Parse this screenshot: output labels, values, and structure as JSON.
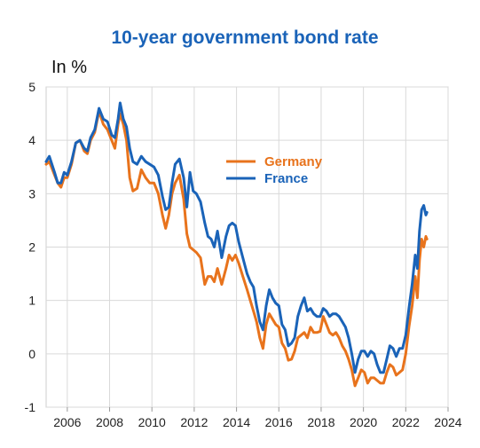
{
  "chart_data": {
    "type": "line",
    "title": "10-year government bond rate",
    "unit_label": "In %",
    "xlim": [
      2005,
      2024
    ],
    "ylim": [
      -1,
      5
    ],
    "x_ticks": [
      "2006",
      "2008",
      "2010",
      "2012",
      "2014",
      "2016",
      "2018",
      "2020",
      "2022",
      "2024"
    ],
    "y_ticks": [
      "5",
      "4",
      "3",
      "2",
      "1",
      "0",
      "-1"
    ],
    "grid": true,
    "legend_position": "center-right",
    "series": [
      {
        "name": "Germany",
        "color": "#e8731c",
        "points": [
          [
            2005.0,
            3.55
          ],
          [
            2005.15,
            3.6
          ],
          [
            2005.4,
            3.35
          ],
          [
            2005.55,
            3.2
          ],
          [
            2005.7,
            3.12
          ],
          [
            2005.85,
            3.3
          ],
          [
            2006.0,
            3.3
          ],
          [
            2006.2,
            3.55
          ],
          [
            2006.4,
            3.95
          ],
          [
            2006.6,
            4.0
          ],
          [
            2006.8,
            3.8
          ],
          [
            2006.95,
            3.75
          ],
          [
            2007.1,
            4.0
          ],
          [
            2007.3,
            4.15
          ],
          [
            2007.5,
            4.55
          ],
          [
            2007.7,
            4.3
          ],
          [
            2007.9,
            4.2
          ],
          [
            2008.1,
            4.0
          ],
          [
            2008.25,
            3.85
          ],
          [
            2008.4,
            4.3
          ],
          [
            2008.5,
            4.5
          ],
          [
            2008.65,
            4.3
          ],
          [
            2008.8,
            4.0
          ],
          [
            2008.95,
            3.3
          ],
          [
            2009.1,
            3.05
          ],
          [
            2009.3,
            3.1
          ],
          [
            2009.5,
            3.45
          ],
          [
            2009.7,
            3.3
          ],
          [
            2009.9,
            3.2
          ],
          [
            2010.1,
            3.2
          ],
          [
            2010.3,
            3.0
          ],
          [
            2010.5,
            2.6
          ],
          [
            2010.65,
            2.35
          ],
          [
            2010.8,
            2.6
          ],
          [
            2010.95,
            3.0
          ],
          [
            2011.1,
            3.2
          ],
          [
            2011.3,
            3.35
          ],
          [
            2011.5,
            2.9
          ],
          [
            2011.65,
            2.25
          ],
          [
            2011.8,
            2.0
          ],
          [
            2011.95,
            1.95
          ],
          [
            2012.1,
            1.9
          ],
          [
            2012.3,
            1.8
          ],
          [
            2012.5,
            1.3
          ],
          [
            2012.65,
            1.45
          ],
          [
            2012.8,
            1.45
          ],
          [
            2012.95,
            1.35
          ],
          [
            2013.1,
            1.6
          ],
          [
            2013.3,
            1.3
          ],
          [
            2013.5,
            1.6
          ],
          [
            2013.65,
            1.85
          ],
          [
            2013.8,
            1.75
          ],
          [
            2013.95,
            1.85
          ],
          [
            2014.1,
            1.7
          ],
          [
            2014.3,
            1.45
          ],
          [
            2014.5,
            1.2
          ],
          [
            2014.65,
            1.0
          ],
          [
            2014.8,
            0.8
          ],
          [
            2014.95,
            0.6
          ],
          [
            2015.1,
            0.3
          ],
          [
            2015.25,
            0.1
          ],
          [
            2015.4,
            0.55
          ],
          [
            2015.55,
            0.75
          ],
          [
            2015.7,
            0.65
          ],
          [
            2015.85,
            0.55
          ],
          [
            2016.0,
            0.5
          ],
          [
            2016.15,
            0.2
          ],
          [
            2016.3,
            0.1
          ],
          [
            2016.45,
            -0.12
          ],
          [
            2016.6,
            -0.1
          ],
          [
            2016.75,
            0.05
          ],
          [
            2016.9,
            0.3
          ],
          [
            2017.05,
            0.35
          ],
          [
            2017.2,
            0.4
          ],
          [
            2017.35,
            0.3
          ],
          [
            2017.5,
            0.5
          ],
          [
            2017.65,
            0.4
          ],
          [
            2017.8,
            0.4
          ],
          [
            2017.95,
            0.42
          ],
          [
            2018.1,
            0.7
          ],
          [
            2018.25,
            0.55
          ],
          [
            2018.4,
            0.4
          ],
          [
            2018.55,
            0.35
          ],
          [
            2018.7,
            0.4
          ],
          [
            2018.85,
            0.3
          ],
          [
            2019.0,
            0.15
          ],
          [
            2019.15,
            0.05
          ],
          [
            2019.3,
            -0.1
          ],
          [
            2019.45,
            -0.3
          ],
          [
            2019.6,
            -0.6
          ],
          [
            2019.75,
            -0.45
          ],
          [
            2019.9,
            -0.3
          ],
          [
            2020.05,
            -0.35
          ],
          [
            2020.2,
            -0.55
          ],
          [
            2020.35,
            -0.45
          ],
          [
            2020.5,
            -0.45
          ],
          [
            2020.65,
            -0.5
          ],
          [
            2020.8,
            -0.55
          ],
          [
            2020.95,
            -0.55
          ],
          [
            2021.1,
            -0.35
          ],
          [
            2021.25,
            -0.2
          ],
          [
            2021.4,
            -0.25
          ],
          [
            2021.55,
            -0.4
          ],
          [
            2021.7,
            -0.35
          ],
          [
            2021.85,
            -0.3
          ],
          [
            2022.0,
            0.0
          ],
          [
            2022.15,
            0.5
          ],
          [
            2022.3,
            0.9
          ],
          [
            2022.45,
            1.45
          ],
          [
            2022.55,
            1.05
          ],
          [
            2022.65,
            1.75
          ],
          [
            2022.75,
            2.15
          ],
          [
            2022.85,
            2.0
          ],
          [
            2022.95,
            2.2
          ],
          [
            2023.0,
            2.15
          ]
        ]
      },
      {
        "name": "France",
        "color": "#1a63b8",
        "points": [
          [
            2005.0,
            3.6
          ],
          [
            2005.15,
            3.7
          ],
          [
            2005.4,
            3.4
          ],
          [
            2005.55,
            3.2
          ],
          [
            2005.7,
            3.2
          ],
          [
            2005.85,
            3.4
          ],
          [
            2006.0,
            3.35
          ],
          [
            2006.2,
            3.6
          ],
          [
            2006.4,
            3.95
          ],
          [
            2006.6,
            4.0
          ],
          [
            2006.8,
            3.85
          ],
          [
            2006.95,
            3.8
          ],
          [
            2007.1,
            4.05
          ],
          [
            2007.3,
            4.2
          ],
          [
            2007.5,
            4.6
          ],
          [
            2007.7,
            4.4
          ],
          [
            2007.9,
            4.35
          ],
          [
            2008.1,
            4.1
          ],
          [
            2008.25,
            4.05
          ],
          [
            2008.4,
            4.4
          ],
          [
            2008.5,
            4.7
          ],
          [
            2008.65,
            4.4
          ],
          [
            2008.8,
            4.25
          ],
          [
            2008.95,
            3.85
          ],
          [
            2009.1,
            3.6
          ],
          [
            2009.3,
            3.55
          ],
          [
            2009.5,
            3.7
          ],
          [
            2009.7,
            3.6
          ],
          [
            2009.9,
            3.55
          ],
          [
            2010.1,
            3.5
          ],
          [
            2010.3,
            3.35
          ],
          [
            2010.5,
            2.95
          ],
          [
            2010.65,
            2.7
          ],
          [
            2010.8,
            2.75
          ],
          [
            2010.95,
            3.2
          ],
          [
            2011.1,
            3.55
          ],
          [
            2011.3,
            3.65
          ],
          [
            2011.5,
            3.3
          ],
          [
            2011.65,
            2.75
          ],
          [
            2011.8,
            3.4
          ],
          [
            2011.95,
            3.05
          ],
          [
            2012.1,
            3.0
          ],
          [
            2012.3,
            2.85
          ],
          [
            2012.5,
            2.45
          ],
          [
            2012.65,
            2.2
          ],
          [
            2012.8,
            2.15
          ],
          [
            2012.95,
            2.0
          ],
          [
            2013.1,
            2.3
          ],
          [
            2013.3,
            1.8
          ],
          [
            2013.5,
            2.2
          ],
          [
            2013.65,
            2.4
          ],
          [
            2013.8,
            2.45
          ],
          [
            2013.95,
            2.4
          ],
          [
            2014.1,
            2.1
          ],
          [
            2014.3,
            1.8
          ],
          [
            2014.5,
            1.5
          ],
          [
            2014.65,
            1.35
          ],
          [
            2014.8,
            1.25
          ],
          [
            2014.95,
            0.9
          ],
          [
            2015.1,
            0.6
          ],
          [
            2015.25,
            0.45
          ],
          [
            2015.4,
            0.9
          ],
          [
            2015.55,
            1.2
          ],
          [
            2015.7,
            1.05
          ],
          [
            2015.85,
            0.95
          ],
          [
            2016.0,
            0.9
          ],
          [
            2016.15,
            0.55
          ],
          [
            2016.3,
            0.45
          ],
          [
            2016.45,
            0.15
          ],
          [
            2016.6,
            0.2
          ],
          [
            2016.75,
            0.3
          ],
          [
            2016.9,
            0.7
          ],
          [
            2017.05,
            0.9
          ],
          [
            2017.2,
            1.05
          ],
          [
            2017.35,
            0.8
          ],
          [
            2017.5,
            0.85
          ],
          [
            2017.65,
            0.75
          ],
          [
            2017.8,
            0.7
          ],
          [
            2017.95,
            0.7
          ],
          [
            2018.1,
            0.85
          ],
          [
            2018.25,
            0.8
          ],
          [
            2018.4,
            0.7
          ],
          [
            2018.55,
            0.75
          ],
          [
            2018.7,
            0.75
          ],
          [
            2018.85,
            0.7
          ],
          [
            2019.0,
            0.6
          ],
          [
            2019.15,
            0.5
          ],
          [
            2019.3,
            0.3
          ],
          [
            2019.45,
            0.0
          ],
          [
            2019.6,
            -0.35
          ],
          [
            2019.75,
            -0.1
          ],
          [
            2019.9,
            0.05
          ],
          [
            2020.05,
            0.05
          ],
          [
            2020.2,
            -0.05
          ],
          [
            2020.35,
            0.05
          ],
          [
            2020.5,
            0.0
          ],
          [
            2020.65,
            -0.2
          ],
          [
            2020.8,
            -0.35
          ],
          [
            2020.95,
            -0.35
          ],
          [
            2021.1,
            -0.1
          ],
          [
            2021.25,
            0.15
          ],
          [
            2021.4,
            0.1
          ],
          [
            2021.55,
            -0.05
          ],
          [
            2021.7,
            0.1
          ],
          [
            2021.85,
            0.1
          ],
          [
            2022.0,
            0.35
          ],
          [
            2022.15,
            0.85
          ],
          [
            2022.3,
            1.3
          ],
          [
            2022.45,
            1.85
          ],
          [
            2022.55,
            1.6
          ],
          [
            2022.65,
            2.3
          ],
          [
            2022.75,
            2.7
          ],
          [
            2022.85,
            2.78
          ],
          [
            2022.95,
            2.6
          ],
          [
            2023.0,
            2.65
          ]
        ]
      }
    ]
  }
}
